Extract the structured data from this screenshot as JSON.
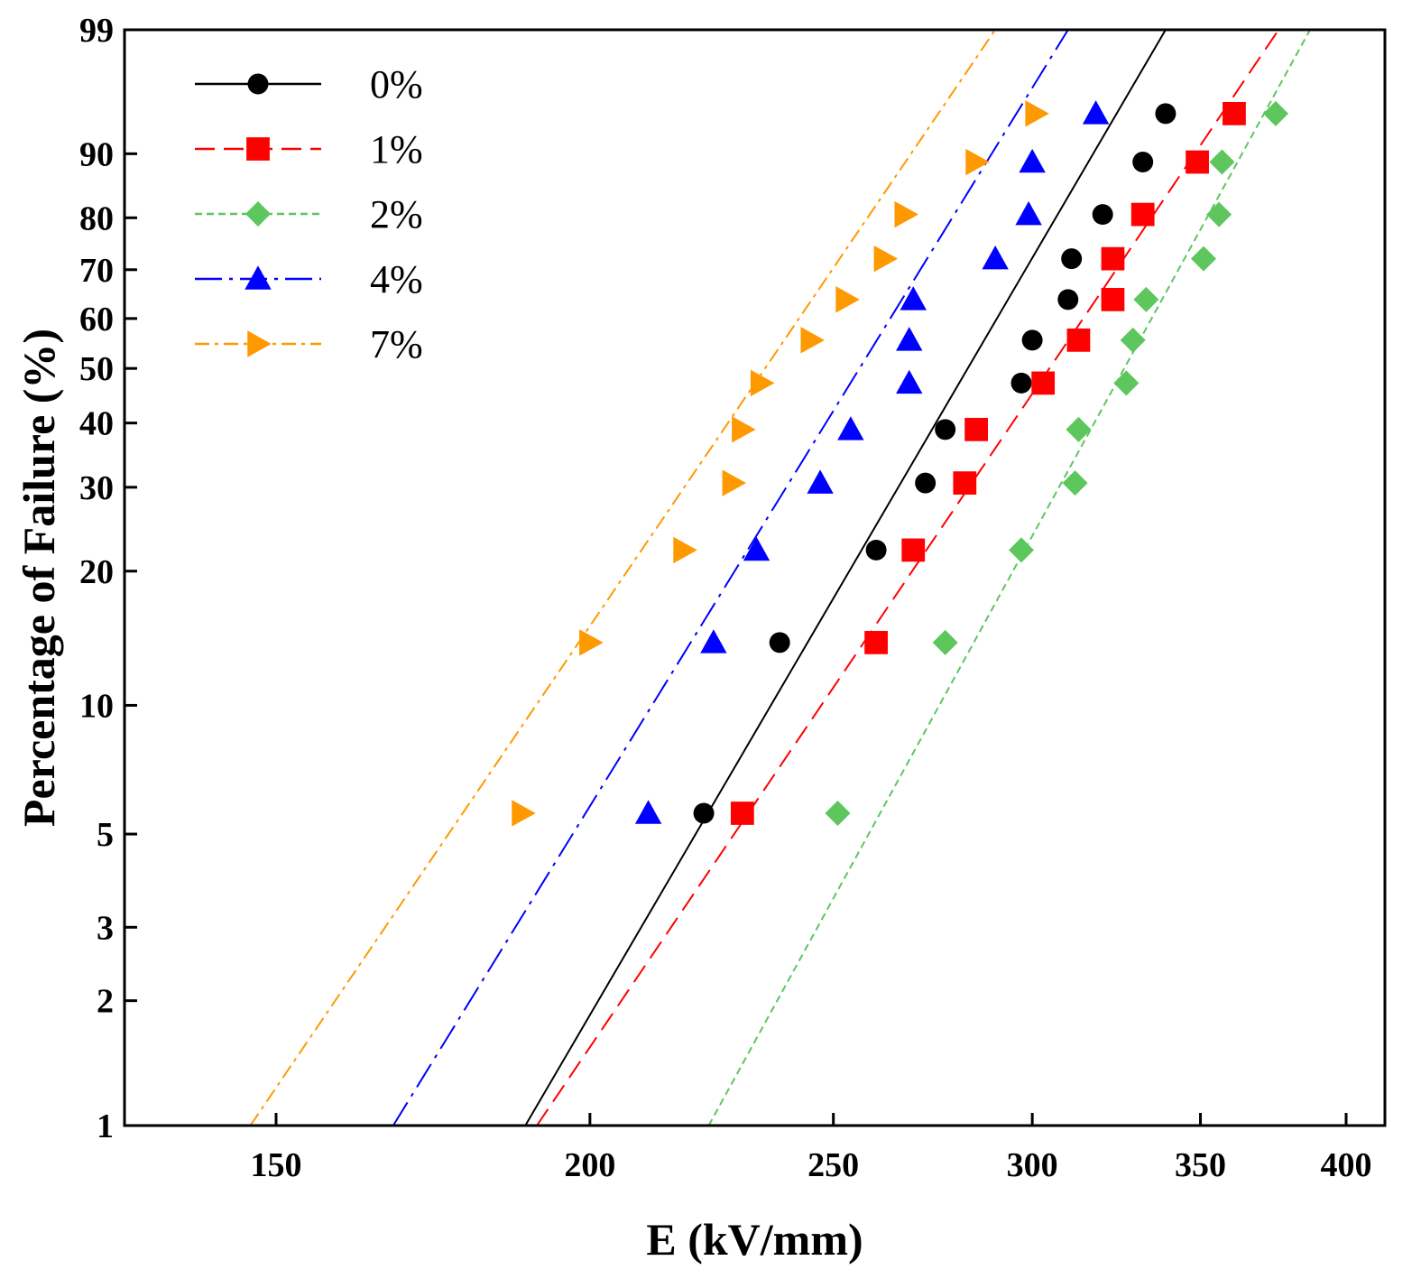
{
  "chart_data": {
    "type": "scatter",
    "title": "",
    "xlabel": "E (kV/mm)",
    "ylabel": "Percentage of Failure (%)",
    "xlim": [
      130,
      405
    ],
    "ylim": [
      1,
      99
    ],
    "y_scale": "weibull",
    "x_scale": "log",
    "grid": false,
    "legend_position": "top-left",
    "x_ticks": [
      150,
      200,
      250,
      300,
      350,
      400
    ],
    "x_tick_labels": [
      "150",
      "200",
      "250",
      "300",
      "350",
      "400"
    ],
    "y_ticks": [
      1,
      2,
      3,
      5,
      10,
      20,
      30,
      40,
      50,
      60,
      70,
      80,
      90,
      99
    ],
    "y_tick_labels": [
      "1",
      "2",
      "3",
      "5",
      "10",
      "20",
      "30",
      "40",
      "50",
      "60",
      "70",
      "80",
      "90",
      "99"
    ],
    "series": [
      {
        "name": "0%",
        "color": "#000000",
        "marker": "circle",
        "line_dash": "",
        "fit_line": [
          [
            188.5,
            1
          ],
          [
            339,
            99
          ]
        ],
        "points": [
          {
            "x": 222,
            "y": 5.6
          },
          {
            "x": 238,
            "y": 13.9
          },
          {
            "x": 260,
            "y": 22.2
          },
          {
            "x": 272,
            "y": 30.6
          },
          {
            "x": 277,
            "y": 38.9
          },
          {
            "x": 297,
            "y": 47.2
          },
          {
            "x": 300,
            "y": 55.6
          },
          {
            "x": 310,
            "y": 63.9
          },
          {
            "x": 311,
            "y": 72.2
          },
          {
            "x": 320,
            "y": 80.6
          },
          {
            "x": 332,
            "y": 88.9
          },
          {
            "x": 339,
            "y": 94.4
          }
        ]
      },
      {
        "name": "1%",
        "color": "#ff0000",
        "marker": "square",
        "line_dash": "22,10",
        "fit_line": [
          [
            190.5,
            1
          ],
          [
            376,
            99
          ]
        ],
        "points": [
          {
            "x": 230,
            "y": 5.6
          },
          {
            "x": 260,
            "y": 13.9
          },
          {
            "x": 269,
            "y": 22.2
          },
          {
            "x": 282,
            "y": 30.6
          },
          {
            "x": 285,
            "y": 38.9
          },
          {
            "x": 303,
            "y": 47.2
          },
          {
            "x": 313,
            "y": 55.6
          },
          {
            "x": 323,
            "y": 63.9
          },
          {
            "x": 323,
            "y": 72.2
          },
          {
            "x": 332,
            "y": 80.6
          },
          {
            "x": 349,
            "y": 88.9
          },
          {
            "x": 361,
            "y": 94.4
          }
        ]
      },
      {
        "name": "2%",
        "color": "#5dc65d",
        "marker": "diamond",
        "line_dash": "8,5",
        "fit_line": [
          [
            223,
            1
          ],
          [
            387,
            99
          ]
        ],
        "points": [
          {
            "x": 251,
            "y": 5.6
          },
          {
            "x": 277,
            "y": 13.9
          },
          {
            "x": 297,
            "y": 22.2
          },
          {
            "x": 312,
            "y": 30.6
          },
          {
            "x": 313,
            "y": 38.9
          },
          {
            "x": 327,
            "y": 47.2
          },
          {
            "x": 329,
            "y": 55.6
          },
          {
            "x": 333,
            "y": 63.9
          },
          {
            "x": 351,
            "y": 72.2
          },
          {
            "x": 356,
            "y": 80.6
          },
          {
            "x": 357,
            "y": 88.9
          },
          {
            "x": 375,
            "y": 94.4
          }
        ]
      },
      {
        "name": "4%",
        "color": "#0000ff",
        "marker": "triangle-up",
        "line_dash": "30,8,4,8",
        "fit_line": [
          [
            167,
            1
          ],
          [
            310,
            99
          ]
        ],
        "points": [
          {
            "x": 211,
            "y": 5.6
          },
          {
            "x": 224,
            "y": 13.9
          },
          {
            "x": 233,
            "y": 22.2
          },
          {
            "x": 247,
            "y": 30.6
          },
          {
            "x": 254,
            "y": 38.9
          },
          {
            "x": 268,
            "y": 47.2
          },
          {
            "x": 268,
            "y": 55.6
          },
          {
            "x": 269,
            "y": 63.9
          },
          {
            "x": 290,
            "y": 72.2
          },
          {
            "x": 299,
            "y": 80.6
          },
          {
            "x": 300,
            "y": 88.9
          },
          {
            "x": 318,
            "y": 94.4
          }
        ]
      },
      {
        "name": "7%",
        "color": "#ff9900",
        "marker": "triangle-right",
        "line_dash": "16,6,4,6",
        "fit_line": [
          [
            146.5,
            1
          ],
          [
            290,
            99
          ]
        ],
        "points": [
          {
            "x": 188,
            "y": 5.6
          },
          {
            "x": 200,
            "y": 13.9
          },
          {
            "x": 218,
            "y": 22.2
          },
          {
            "x": 228,
            "y": 30.6
          },
          {
            "x": 230,
            "y": 38.9
          },
          {
            "x": 234,
            "y": 47.2
          },
          {
            "x": 245,
            "y": 55.6
          },
          {
            "x": 253,
            "y": 63.9
          },
          {
            "x": 262,
            "y": 72.2
          },
          {
            "x": 267,
            "y": 80.6
          },
          {
            "x": 285,
            "y": 88.9
          },
          {
            "x": 301,
            "y": 94.4
          }
        ]
      }
    ]
  }
}
